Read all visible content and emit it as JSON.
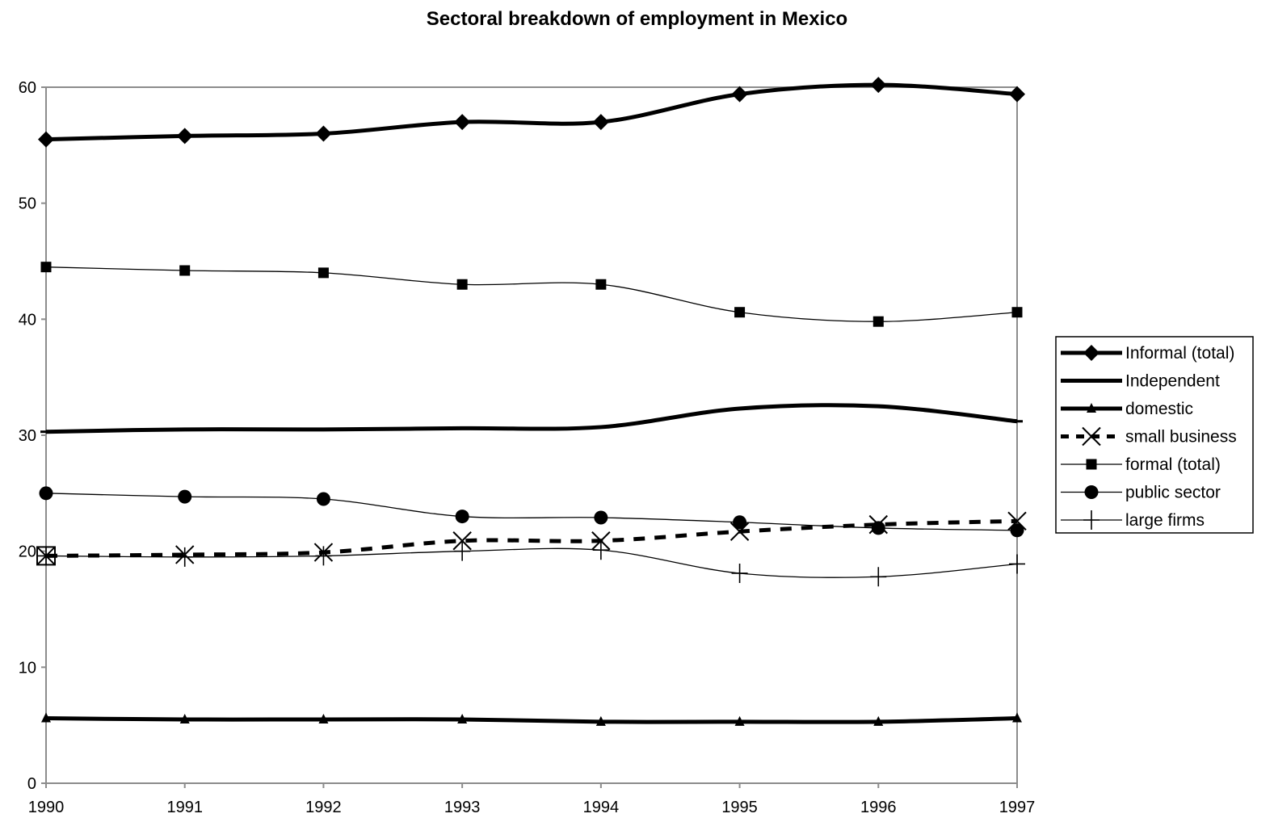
{
  "chart_data": {
    "type": "line",
    "title": "Sectoral breakdown of employment in Mexico",
    "xlabel": "",
    "ylabel": "",
    "x": [
      "1990",
      "1991",
      "1992",
      "1993",
      "1994",
      "1995",
      "1996",
      "1997"
    ],
    "ylim": [
      0,
      60
    ],
    "yticks": [
      0,
      10,
      20,
      30,
      40,
      50,
      60
    ],
    "grid": false,
    "legend_position": "right",
    "series": [
      {
        "name": "Informal (total)",
        "marker": "diamond",
        "style": "thick",
        "values": [
          55.5,
          55.8,
          56.0,
          57.0,
          57.0,
          59.4,
          60.2,
          59.4
        ]
      },
      {
        "name": "Independent",
        "marker": "dash",
        "style": "thick",
        "values": [
          30.3,
          30.5,
          30.5,
          30.6,
          30.7,
          32.3,
          32.5,
          31.2
        ]
      },
      {
        "name": "domestic",
        "marker": "triangle",
        "style": "thick",
        "values": [
          5.6,
          5.5,
          5.5,
          5.5,
          5.3,
          5.3,
          5.3,
          5.6
        ]
      },
      {
        "name": "small business",
        "marker": "x",
        "style": "dashed",
        "values": [
          19.6,
          19.7,
          19.9,
          20.9,
          20.9,
          21.7,
          22.3,
          22.6
        ]
      },
      {
        "name": "formal (total)",
        "marker": "square",
        "style": "thin",
        "values": [
          44.5,
          44.2,
          44.0,
          43.0,
          43.0,
          40.6,
          39.8,
          40.6
        ]
      },
      {
        "name": "public sector",
        "marker": "circle",
        "style": "thin",
        "values": [
          25.0,
          24.7,
          24.5,
          23.0,
          22.9,
          22.5,
          22.0,
          21.8
        ]
      },
      {
        "name": "large firms",
        "marker": "plus",
        "style": "thin",
        "values": [
          19.6,
          19.5,
          19.6,
          20.0,
          20.1,
          18.1,
          17.8,
          18.9
        ]
      }
    ]
  }
}
